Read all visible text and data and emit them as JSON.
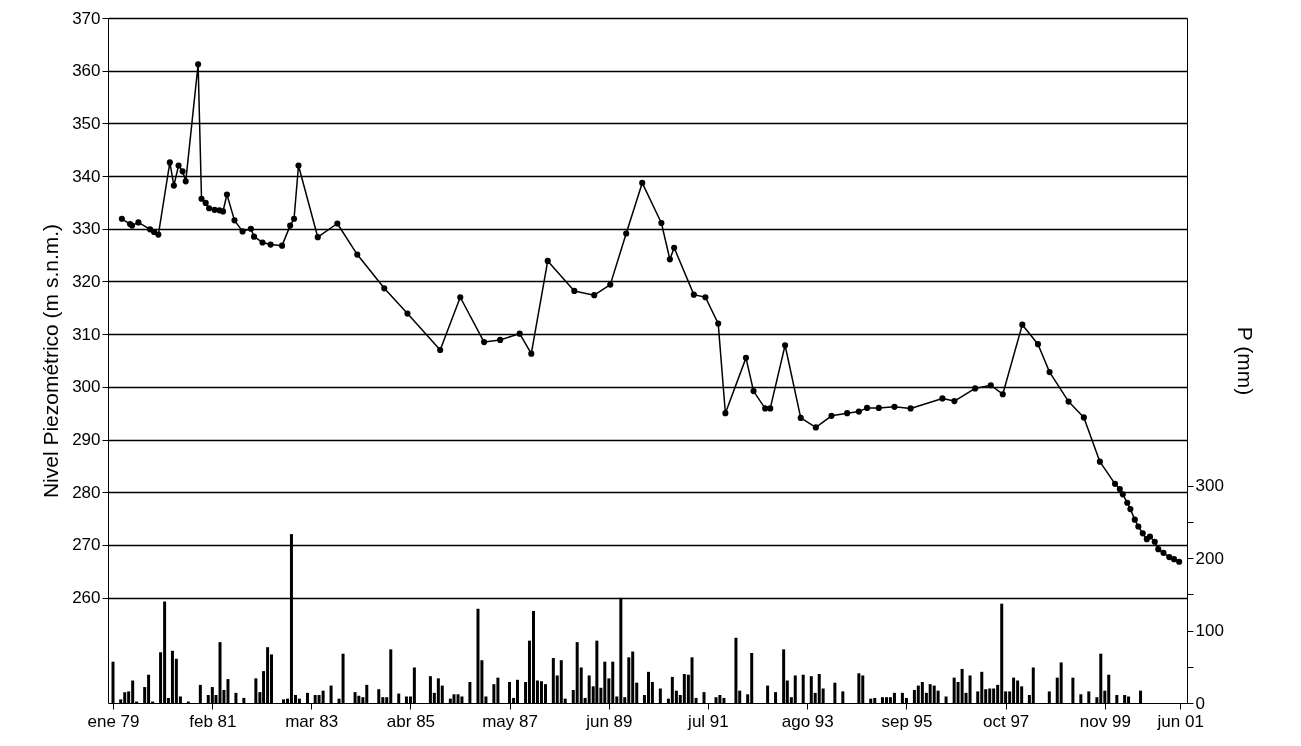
{
  "chart_data": {
    "type": "line",
    "ylabel": "Nivel Piezométrico (m s.n.m.)",
    "y2label": "P (mm)",
    "marker": "circle",
    "grid": "y",
    "xlim": [
      "1979-01-01",
      "2001-06-15"
    ],
    "xticks": [
      {
        "value": "1979-01-01",
        "label": "ene 79"
      },
      {
        "value": "1981-02-01",
        "label": "feb 81"
      },
      {
        "value": "1983-03-01",
        "label": "mar 83"
      },
      {
        "value": "1985-04-01",
        "label": "abr 85"
      },
      {
        "value": "1987-05-01",
        "label": "may 87"
      },
      {
        "value": "1989-06-01",
        "label": "jun 89"
      },
      {
        "value": "1991-07-01",
        "label": "jul 91"
      },
      {
        "value": "1993-08-01",
        "label": "ago 93"
      },
      {
        "value": "1995-09-01",
        "label": "sep 95"
      },
      {
        "value": "1997-10-01",
        "label": "oct 97"
      },
      {
        "value": "1999-11-01",
        "label": "nov 99"
      },
      {
        "value": "2001-06-01",
        "label": "jun 01"
      }
    ],
    "ylim": [
      240,
      370
    ],
    "yticks": [
      260,
      270,
      280,
      290,
      300,
      310,
      320,
      330,
      340,
      350,
      360,
      370
    ],
    "y2lim": [
      0,
      945
    ],
    "y2ticks": [
      0,
      {
        "value": 50,
        "label": null
      },
      100,
      {
        "value": 150,
        "label": null
      },
      200,
      {
        "value": 250,
        "label": null
      },
      300
    ],
    "series": [
      {
        "type": "bar",
        "axis": "y2",
        "color": "#000000",
        "x": [
          "1979-01",
          "1979-03",
          "1979-04",
          "1979-05",
          "1979-06",
          "1979-07",
          "1979-09",
          "1979-10",
          "1979-11",
          "1980-01",
          "1980-02",
          "1980-03",
          "1980-04",
          "1980-05",
          "1980-06",
          "1980-08",
          "1980-11",
          "1981-01",
          "1981-02",
          "1981-03",
          "1981-04",
          "1981-05",
          "1981-06",
          "1981-08",
          "1981-10",
          "1982-01",
          "1982-02",
          "1982-03",
          "1982-04",
          "1982-05",
          "1982-08",
          "1982-09",
          "1982-10",
          "1982-11",
          "1982-12",
          "1983-02",
          "1983-04",
          "1983-05",
          "1983-06",
          "1983-08",
          "1983-10",
          "1983-11",
          "1984-02",
          "1984-03",
          "1984-04",
          "1984-05",
          "1984-08",
          "1984-09",
          "1984-10",
          "1984-11",
          "1985-01",
          "1985-03",
          "1985-04",
          "1985-05",
          "1985-09",
          "1985-10",
          "1985-11",
          "1985-12",
          "1986-02",
          "1986-03",
          "1986-04",
          "1986-05",
          "1986-07",
          "1986-09",
          "1986-10",
          "1986-11",
          "1987-01",
          "1987-02",
          "1987-05",
          "1987-06",
          "1987-07",
          "1987-09",
          "1987-10",
          "1987-11",
          "1987-12",
          "1988-01",
          "1988-02",
          "1988-04",
          "1988-05",
          "1988-06",
          "1988-07",
          "1988-09",
          "1988-10",
          "1988-11",
          "1988-12",
          "1989-01",
          "1989-02",
          "1989-03",
          "1989-04",
          "1989-05",
          "1989-06",
          "1989-07",
          "1989-08",
          "1989-09",
          "1989-10",
          "1989-11",
          "1989-12",
          "1990-01",
          "1990-03",
          "1990-04",
          "1990-05",
          "1990-07",
          "1990-09",
          "1990-10",
          "1990-11",
          "1990-12",
          "1991-01",
          "1991-02",
          "1991-03",
          "1991-04",
          "1991-06",
          "1991-09",
          "1991-10",
          "1991-11",
          "1992-02",
          "1992-03",
          "1992-05",
          "1992-06",
          "1992-10",
          "1992-12",
          "1993-02",
          "1993-03",
          "1993-04",
          "1993-05",
          "1993-07",
          "1993-09",
          "1993-10",
          "1993-11",
          "1993-12",
          "1994-03",
          "1994-05",
          "1994-09",
          "1994-10",
          "1994-12",
          "1995-01",
          "1995-03",
          "1995-04",
          "1995-05",
          "1995-06",
          "1995-08",
          "1995-09",
          "1995-11",
          "1995-12",
          "1996-01",
          "1996-02",
          "1996-03",
          "1996-04",
          "1996-05",
          "1996-07",
          "1996-09",
          "1996-10",
          "1996-11",
          "1996-12",
          "1997-01",
          "1997-03",
          "1997-04",
          "1997-05",
          "1997-06",
          "1997-07",
          "1997-08",
          "1997-09",
          "1997-10",
          "1997-11",
          "1997-12",
          "1998-01",
          "1998-02",
          "1998-04",
          "1998-05",
          "1998-09",
          "1998-11",
          "1998-12",
          "1999-03",
          "1999-05",
          "1999-07",
          "1999-09",
          "1999-10",
          "1999-11",
          "1999-12",
          "2000-02",
          "2000-04",
          "2000-05",
          "2000-08"
        ],
        "values": [
          57,
          5,
          15,
          16,
          31,
          2,
          22,
          39,
          2,
          70,
          140,
          7,
          72,
          61,
          9,
          2,
          25,
          11,
          22,
          11,
          84,
          18,
          33,
          14,
          7,
          34,
          15,
          44,
          77,
          67,
          5,
          6,
          233,
          11,
          6,
          14,
          11,
          11,
          17,
          24,
          6,
          68,
          15,
          10,
          8,
          25,
          19,
          8,
          8,
          74,
          13,
          9,
          9,
          49,
          37,
          14,
          34,
          24,
          6,
          12,
          12,
          9,
          29,
          130,
          59,
          9,
          26,
          35,
          29,
          7,
          32,
          29,
          86,
          127,
          31,
          30,
          26,
          62,
          38,
          59,
          6,
          18,
          84,
          49,
          7,
          38,
          23,
          86,
          21,
          57,
          34,
          57,
          9,
          145,
          8,
          63,
          71,
          28,
          11,
          43,
          29,
          20,
          6,
          36,
          17,
          11,
          40,
          39,
          63,
          7,
          15,
          8,
          11,
          7,
          90,
          17,
          12,
          69,
          24,
          15,
          74,
          31,
          8,
          38,
          39,
          37,
          14,
          40,
          20,
          28,
          16,
          41,
          38,
          6,
          7,
          8,
          8,
          8,
          14,
          14,
          7,
          18,
          24,
          29,
          14,
          26,
          24,
          17,
          9,
          35,
          29,
          47,
          14,
          38,
          16,
          43,
          19,
          20,
          20,
          25,
          137,
          16,
          16,
          35,
          31,
          23,
          11,
          49,
          16,
          35,
          56,
          35,
          12,
          16,
          8,
          68,
          17,
          39,
          11,
          11,
          9,
          17
        ]
      },
      {
        "color": "#000000",
        "x": [
          "1979-03-10",
          "1979-05-12",
          "1979-05-27",
          "1979-07-15",
          "1979-10-12",
          "1979-11-12",
          "1979-12-15",
          "1980-03-12",
          "1980-04-12",
          "1980-05-18",
          "1980-06-18",
          "1980-07-12",
          "1980-10-15",
          "1980-11-10",
          "1980-12-12",
          "1981-01-07",
          "1981-02-18",
          "1981-03-27",
          "1981-04-24",
          "1981-05-24",
          "1981-07-21",
          "1981-09-21",
          "1981-11-24",
          "1981-12-18",
          "1982-02-21",
          "1982-04-24",
          "1982-07-21",
          "1982-09-21",
          "1982-10-21",
          "1982-11-24",
          "1983-04-21",
          "1983-09-18",
          "1984-02-18",
          "1984-09-12",
          "1985-03-09",
          "1985-11-15",
          "1986-04-18",
          "1986-10-18",
          "1987-02-18",
          "1987-07-18",
          "1987-10-15",
          "1988-02-18",
          "1988-09-09",
          "1989-02-09",
          "1989-06-12",
          "1989-10-12",
          "1990-02-12",
          "1990-07-09",
          "1990-09-12",
          "1990-10-15",
          "1991-03-15",
          "1991-06-12",
          "1991-09-18",
          "1991-11-12",
          "1992-04-18",
          "1992-06-15",
          "1992-09-12",
          "1992-10-21",
          "1993-02-12",
          "1993-06-12",
          "1993-10-06",
          "1994-02-03",
          "1994-06-03",
          "1994-09-01",
          "1994-11-03",
          "1995-02-01",
          "1995-06-01",
          "1995-10-03",
          "1996-06-03",
          "1996-09-03",
          "1997-02-09",
          "1997-06-09",
          "1997-09-09",
          "1998-02-06",
          "1998-06-06",
          "1998-09-03",
          "1999-01-27",
          "1999-05-24",
          "1999-09-24",
          "2000-01-18",
          "2000-02-24",
          "2000-03-18",
          "2000-04-21",
          "2000-05-15",
          "2000-06-18",
          "2000-07-15",
          "2000-08-18",
          "2000-09-18",
          "2000-10-12",
          "2000-11-18",
          "2000-12-15",
          "2001-01-24",
          "2001-03-09",
          "2001-04-15",
          "2001-05-24"
        ],
        "values": [
          331.9,
          330.9,
          330.6,
          331.2,
          329.9,
          329.4,
          328.9,
          342.6,
          338.2,
          342.0,
          340.9,
          339.0,
          361.2,
          335.7,
          334.9,
          333.9,
          333.6,
          333.5,
          333.3,
          336.5,
          331.6,
          329.5,
          330.0,
          328.5,
          327.4,
          327.0,
          326.8,
          330.6,
          331.9,
          342.0,
          328.4,
          331.0,
          325.1,
          318.7,
          313.9,
          307.0,
          317.0,
          308.5,
          308.9,
          310.1,
          306.3,
          323.9,
          318.2,
          317.4,
          319.4,
          329.1,
          338.7,
          331.1,
          324.2,
          326.4,
          317.5,
          317.0,
          312.0,
          295.0,
          305.5,
          299.2,
          295.9,
          295.9,
          307.9,
          294.1,
          292.3,
          294.5,
          295.0,
          295.3,
          296.0,
          296.0,
          296.2,
          295.9,
          297.8,
          297.3,
          299.7,
          300.3,
          298.6,
          311.8,
          308.1,
          302.8,
          297.2,
          294.2,
          285.8,
          281.6,
          280.6,
          279.6,
          278.0,
          276.8,
          274.8,
          273.5,
          272.2,
          271.1,
          271.6,
          270.6,
          269.2,
          268.5,
          267.7,
          267.3,
          266.8
        ]
      }
    ]
  }
}
